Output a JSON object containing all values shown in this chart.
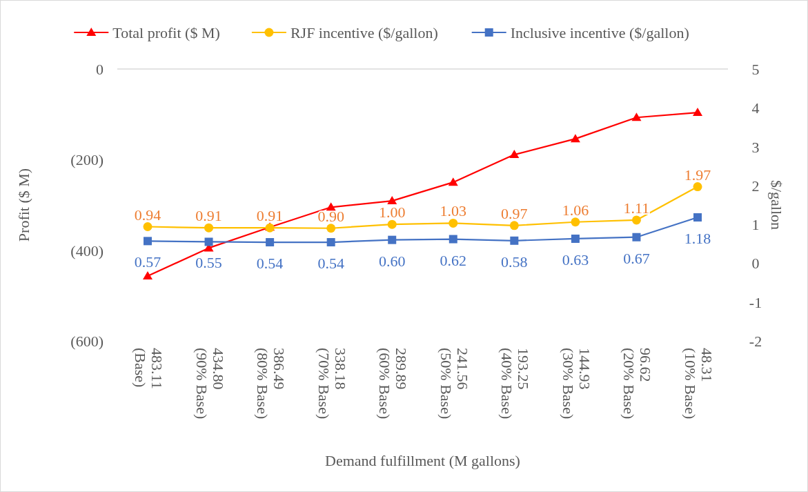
{
  "chart_data": {
    "type": "line",
    "xlabel": "Demand fulfillment (M gallons)",
    "ylabel": "Profit ($ M)",
    "y2label": "$/gallon",
    "categories": [
      "483.11 (Base)",
      "434.80 (90% Base)",
      "386.49 (80% Base)",
      "338.18 (70% Base)",
      "289.89 (60% Base)",
      "241.56 (50% Base)",
      "193.25 (40% Base)",
      "144.93 (30% Base)",
      "96.62 (20% Base)",
      "48.31 (10% Base)"
    ],
    "series": [
      {
        "name": "Total profit ($ M)",
        "color": "#ff0000",
        "marker": "triangle",
        "values": [
          -457,
          -395,
          -349,
          -305,
          -291,
          -250,
          -189,
          -154,
          -107,
          -96
        ]
      },
      {
        "name": "RJF incentive ($/gallon)",
        "color": "#ffc000",
        "marker": "circle",
        "axis": "y2",
        "values": [
          0.94,
          0.91,
          0.91,
          0.9,
          1.0,
          1.03,
          0.97,
          1.06,
          1.11,
          1.97
        ],
        "value_labels": [
          "0.94",
          "0.91",
          "0.91",
          "0.90",
          "1.00",
          "1.03",
          "0.97",
          "1.06",
          "1.11",
          "1.97"
        ]
      },
      {
        "name": "Inclusive incentive ($/gallon)",
        "color": "#4472c4",
        "marker": "square",
        "axis": "y2",
        "values": [
          0.57,
          0.55,
          0.54,
          0.54,
          0.6,
          0.62,
          0.58,
          0.63,
          0.67,
          1.18
        ],
        "value_labels": [
          "0.57",
          "0.55",
          "0.54",
          "0.54",
          "0.60",
          "0.62",
          "0.58",
          "0.63",
          "0.67",
          "1.18"
        ]
      }
    ],
    "ylim": [
      -600,
      0
    ],
    "yticks": [
      {
        "value": -600,
        "label": "(600)"
      },
      {
        "value": -400,
        "label": "(400)"
      },
      {
        "value": -200,
        "label": "(200)"
      },
      0
    ],
    "y2lim": [
      -2,
      5
    ],
    "y2ticks": [
      -2,
      -1,
      0,
      1,
      2,
      3,
      4,
      5
    ],
    "legend": "top",
    "grid": false
  }
}
